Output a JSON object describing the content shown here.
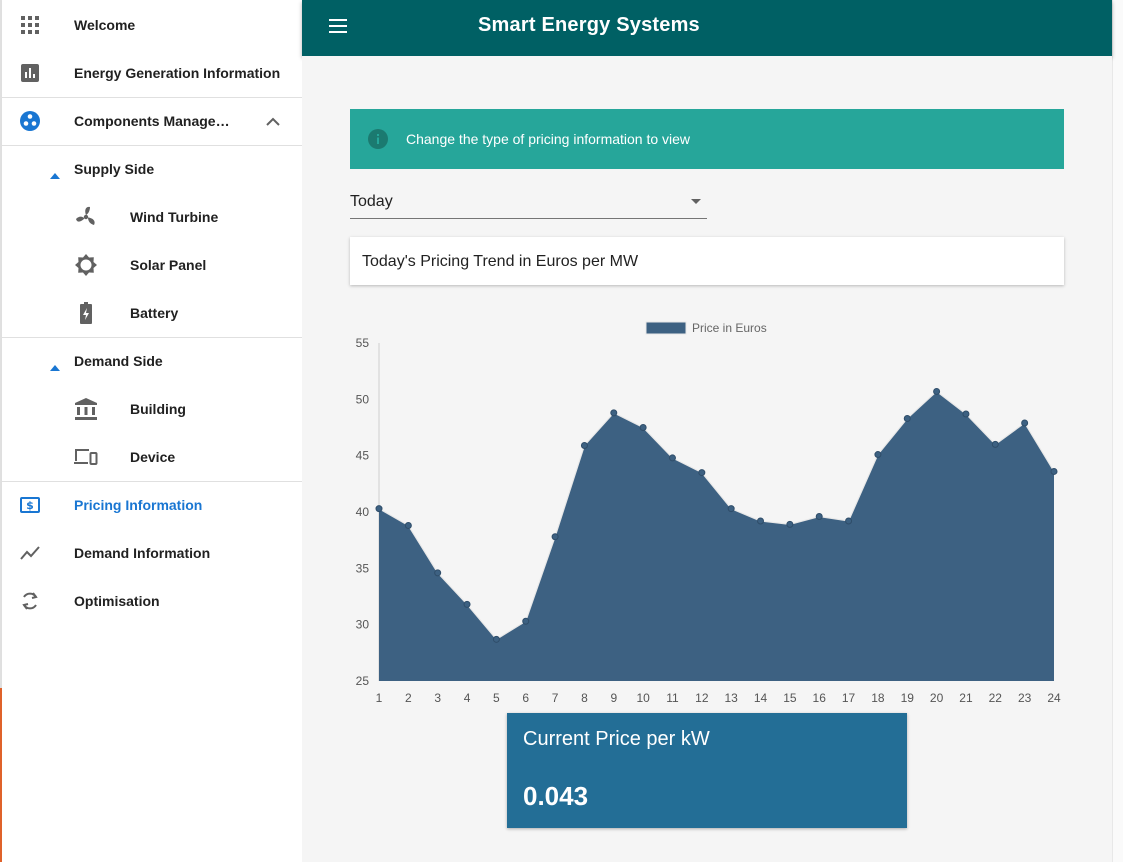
{
  "app": {
    "title": "Smart Energy Systems"
  },
  "sidebar": {
    "items": [
      {
        "label": "Welcome",
        "icon": "apps-grid-icon"
      },
      {
        "label": "Energy Generation Information",
        "icon": "bar-chart-icon"
      },
      {
        "label": "Components Manage…",
        "icon": "bubbles-icon",
        "expanded": true
      },
      {
        "label": "Supply Side",
        "icon": "caret-up-icon"
      },
      {
        "label": "Wind Turbine",
        "icon": "fan-icon"
      },
      {
        "label": "Solar Panel",
        "icon": "sun-icon"
      },
      {
        "label": "Battery",
        "icon": "battery-charging-icon"
      },
      {
        "label": "Demand Side",
        "icon": "caret-up-icon"
      },
      {
        "label": "Building",
        "icon": "bank-icon"
      },
      {
        "label": "Device",
        "icon": "devices-icon"
      },
      {
        "label": "Pricing Information",
        "icon": "dollar-icon",
        "active": true
      },
      {
        "label": "Demand Information",
        "icon": "trending-up-icon"
      },
      {
        "label": "Optimisation",
        "icon": "refresh-icon"
      }
    ]
  },
  "main": {
    "banner_text": "Change the type of pricing information to view",
    "select": {
      "value": "Today"
    },
    "card_title": "Today's Pricing Trend in Euros per MW",
    "price_card": {
      "label": "Current Price per kW",
      "value": "0.043"
    }
  },
  "colors": {
    "header": "#006064",
    "banner": "#26a69a",
    "active": "#1976d2",
    "series_fill": "#3d6182",
    "price_card": "#236e96"
  },
  "chart_data": {
    "type": "area",
    "x": [
      1,
      2,
      3,
      4,
      5,
      6,
      7,
      8,
      9,
      10,
      11,
      12,
      13,
      14,
      15,
      16,
      17,
      18,
      19,
      20,
      21,
      22,
      23,
      24
    ],
    "series": [
      {
        "name": "Price in Euros",
        "values": [
          40.3,
          38.8,
          34.6,
          31.8,
          28.7,
          30.3,
          37.8,
          45.9,
          48.8,
          47.5,
          44.8,
          43.5,
          40.3,
          39.2,
          38.9,
          39.6,
          39.2,
          45.1,
          48.3,
          50.7,
          48.7,
          46.0,
          47.9,
          43.6
        ]
      }
    ],
    "ylim": [
      25,
      55
    ],
    "yticks": [
      25,
      30,
      35,
      40,
      45,
      50,
      55
    ],
    "legend": "top-center",
    "grid": false
  }
}
